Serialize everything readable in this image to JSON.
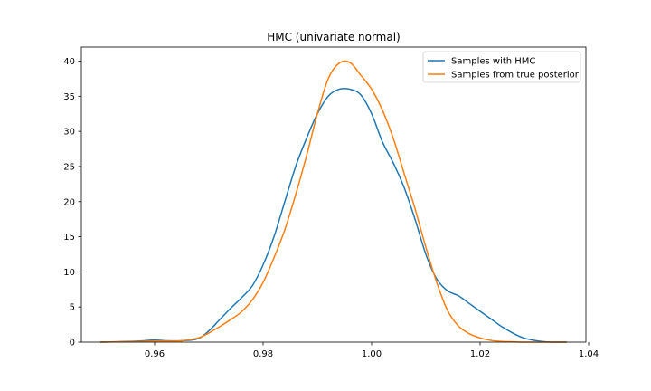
{
  "chart_data": {
    "type": "line",
    "title": "HMC (univariate normal)",
    "xlabel": "",
    "ylabel": "",
    "xlim": [
      0.9465,
      1.0395
    ],
    "ylim": [
      0,
      42
    ],
    "grid": false,
    "legend_position": "top-right",
    "xticks": [
      0.96,
      0.98,
      1.0,
      1.02,
      1.04
    ],
    "xtick_labels": [
      "0.96",
      "0.98",
      "1.00",
      "1.02",
      "1.04"
    ],
    "yticks": [
      0,
      5,
      10,
      15,
      20,
      25,
      30,
      35,
      40
    ],
    "ytick_labels": [
      "0",
      "5",
      "10",
      "15",
      "20",
      "25",
      "30",
      "35",
      "40"
    ],
    "series": [
      {
        "name": "Samples with HMC",
        "color": "#1f77b4",
        "x": [
          0.95,
          0.955,
          0.958,
          0.96,
          0.962,
          0.965,
          0.968,
          0.97,
          0.972,
          0.974,
          0.976,
          0.978,
          0.98,
          0.982,
          0.984,
          0.986,
          0.988,
          0.99,
          0.992,
          0.994,
          0.996,
          0.998,
          1.0,
          1.002,
          1.004,
          1.006,
          1.008,
          1.01,
          1.012,
          1.014,
          1.016,
          1.018,
          1.02,
          1.022,
          1.024,
          1.026,
          1.028,
          1.03,
          1.032,
          1.034,
          1.036
        ],
        "y": [
          0.0,
          0.1,
          0.2,
          0.3,
          0.2,
          0.2,
          0.5,
          1.6,
          3.2,
          4.8,
          6.3,
          8.0,
          11.0,
          15.0,
          20.0,
          25.0,
          29.0,
          32.5,
          35.0,
          36.0,
          36.0,
          35.2,
          32.5,
          28.5,
          25.5,
          22.0,
          17.5,
          12.5,
          9.0,
          7.3,
          6.6,
          5.5,
          4.4,
          3.3,
          2.2,
          1.3,
          0.6,
          0.25,
          0.05,
          0.0,
          0.0
        ]
      },
      {
        "name": "Samples from true posterior",
        "color": "#ff7f0e",
        "x": [
          0.95,
          0.955,
          0.958,
          0.96,
          0.962,
          0.965,
          0.968,
          0.97,
          0.972,
          0.974,
          0.976,
          0.978,
          0.98,
          0.982,
          0.984,
          0.986,
          0.988,
          0.99,
          0.992,
          0.994,
          0.996,
          0.998,
          1.0,
          1.002,
          1.004,
          1.006,
          1.008,
          1.01,
          1.012,
          1.014,
          1.016,
          1.018,
          1.02,
          1.022,
          1.024,
          1.026,
          1.028,
          1.03,
          1.032,
          1.034,
          1.036
        ],
        "y": [
          0.0,
          0.05,
          0.1,
          0.15,
          0.15,
          0.2,
          0.6,
          1.3,
          2.2,
          3.2,
          4.3,
          6.0,
          8.5,
          12.0,
          16.0,
          21.0,
          26.5,
          32.5,
          37.5,
          39.7,
          39.8,
          38.0,
          36.0,
          33.0,
          29.0,
          24.0,
          19.0,
          13.5,
          8.5,
          4.5,
          2.3,
          1.2,
          0.6,
          0.25,
          0.1,
          0.05,
          0.0,
          0.0,
          0.0,
          0.0,
          0.0
        ]
      }
    ]
  }
}
